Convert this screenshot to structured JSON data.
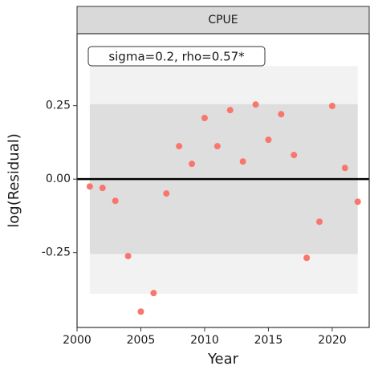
{
  "chart_data": {
    "type": "scatter",
    "facet": "CPUE",
    "annotation": "sigma=0.2, rho=0.57*",
    "x_label": "Year",
    "y_label": "log(Residual)",
    "x": [
      2001,
      2002,
      2003,
      2004,
      2005,
      2006,
      2007,
      2008,
      2009,
      2010,
      2011,
      2012,
      2013,
      2014,
      2015,
      2016,
      2017,
      2018,
      2019,
      2020,
      2021,
      2022
    ],
    "series": [
      {
        "color": "#f8766d",
        "values": [
          -0.025,
          -0.03,
          -0.074,
          -0.262,
          -0.451,
          -0.388,
          -0.049,
          0.112,
          0.052,
          0.208,
          0.112,
          0.235,
          0.06,
          0.254,
          0.134,
          0.221,
          0.082,
          -0.268,
          -0.145,
          0.249,
          0.038,
          -0.077
        ]
      }
    ],
    "outer_band": [
      -0.39,
      0.385
    ],
    "inner_band": [
      -0.255,
      0.255
    ],
    "band_x": [
      2001,
      2022
    ],
    "hline": 0,
    "xlim": [
      2000,
      2022.9
    ],
    "ylim": [
      -0.505,
      0.495
    ],
    "xticks": [
      2000,
      2005,
      2010,
      2015,
      2020
    ],
    "yticks": [
      -0.25,
      {
        "value": 0,
        "label": "0.00"
      },
      0.25
    ]
  }
}
